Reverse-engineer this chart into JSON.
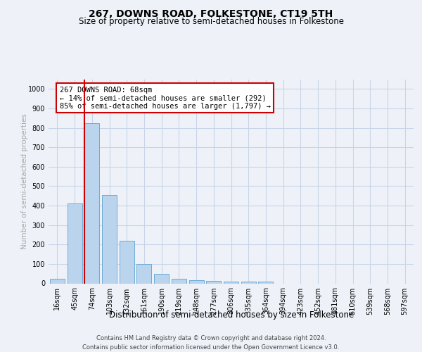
{
  "title": "267, DOWNS ROAD, FOLKESTONE, CT19 5TH",
  "subtitle": "Size of property relative to semi-detached houses in Folkestone",
  "xlabel": "Distribution of semi-detached houses by size in Folkestone",
  "ylabel": "Number of semi-detached properties",
  "footer_line1": "Contains HM Land Registry data © Crown copyright and database right 2024.",
  "footer_line2": "Contains public sector information licensed under the Open Government Licence v3.0.",
  "categories": [
    "16sqm",
    "45sqm",
    "74sqm",
    "103sqm",
    "132sqm",
    "161sqm",
    "190sqm",
    "219sqm",
    "248sqm",
    "277sqm",
    "306sqm",
    "335sqm",
    "364sqm",
    "394sqm",
    "423sqm",
    "452sqm",
    "481sqm",
    "510sqm",
    "539sqm",
    "568sqm",
    "597sqm"
  ],
  "values": [
    25,
    410,
    825,
    455,
    220,
    100,
    48,
    22,
    17,
    12,
    10,
    10,
    10,
    0,
    0,
    0,
    0,
    0,
    0,
    0,
    0
  ],
  "bar_color": "#bad4ed",
  "bar_edge_color": "#6aacd6",
  "highlight_bar_index": 2,
  "highlight_line_color": "#cc0000",
  "annotation_text": "267 DOWNS ROAD: 68sqm\n← 14% of semi-detached houses are smaller (292)\n85% of semi-detached houses are larger (1,797) →",
  "annotation_box_edgecolor": "#cc0000",
  "annotation_bg": "#ffffff",
  "ylim_max": 1050,
  "yticks": [
    0,
    100,
    200,
    300,
    400,
    500,
    600,
    700,
    800,
    900,
    1000
  ],
  "grid_color": "#c8d4e8",
  "background_color": "#eef2f8",
  "title_fontsize": 10,
  "subtitle_fontsize": 8.5,
  "ylabel_fontsize": 7.5,
  "xlabel_fontsize": 8.5,
  "tick_fontsize": 7,
  "footer_fontsize": 6.0,
  "annotation_fontsize": 7.5
}
